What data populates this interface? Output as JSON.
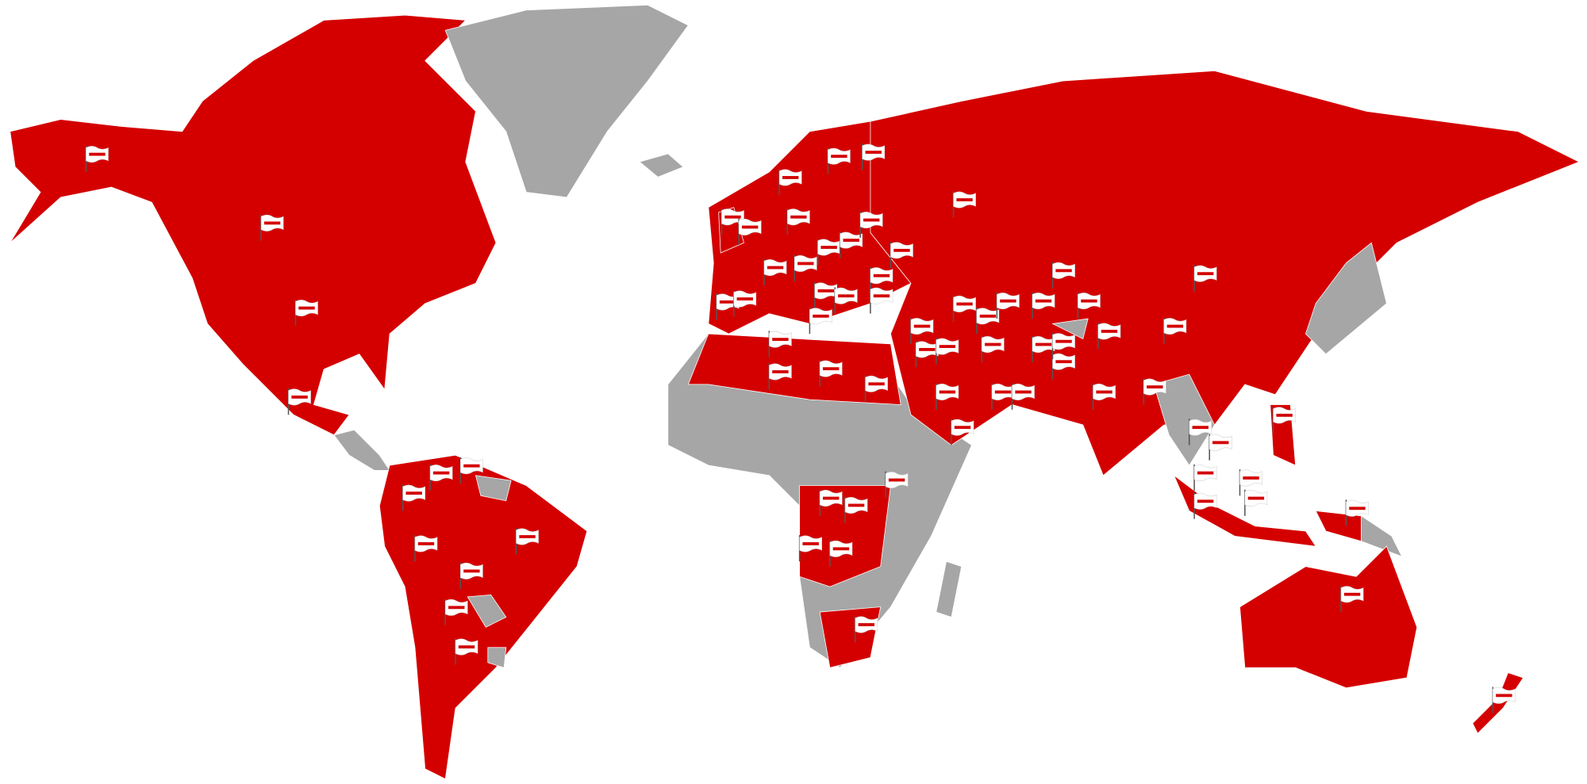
{
  "map": {
    "colors": {
      "highlighted_country": "#d40000",
      "other_country": "#a6a6a6",
      "ocean": "#ffffff",
      "flag": "#ffffff"
    },
    "marker_icon": "flag-icon",
    "flag_logo_text": "logo"
  }
}
